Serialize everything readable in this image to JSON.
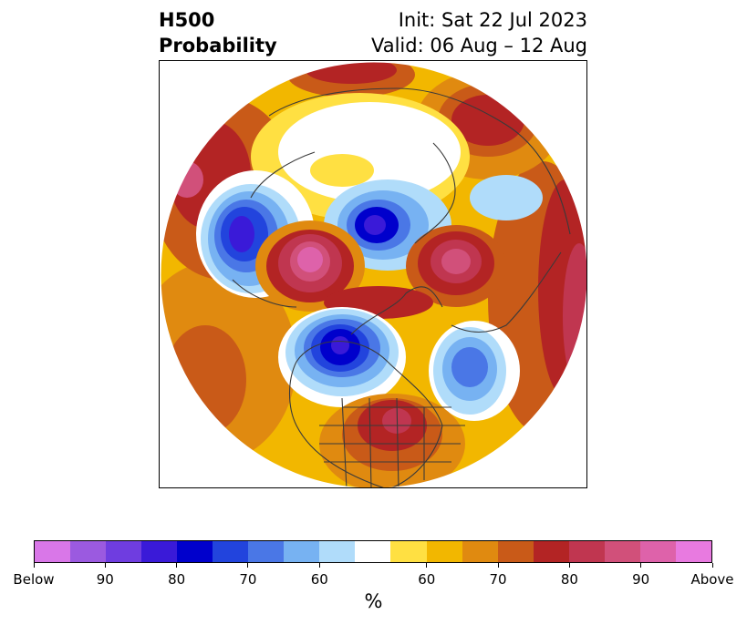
{
  "header": {
    "title_line1": "H500",
    "title_line2": "Probability",
    "init": "Init: Sat 22 Jul 2023",
    "valid": "Valid: 06 Aug – 12 Aug"
  },
  "colorbar": {
    "unit_label": "%",
    "colors": [
      "#d977e8",
      "#9b5ae0",
      "#6f3de0",
      "#3a1ad8",
      "#0000cc",
      "#2244dd",
      "#4a77e6",
      "#77b2f2",
      "#b0dcfa",
      "#ffffff",
      "#ffe042",
      "#f2b700",
      "#e08a10",
      "#c95a18",
      "#b32424",
      "#c03650",
      "#d1507a",
      "#de62aa",
      "#e87ae0"
    ],
    "tick_labels": [
      "Below",
      "90",
      "80",
      "70",
      "60",
      "60",
      "70",
      "80",
      "90",
      "Above"
    ],
    "tick_indices": [
      0,
      2,
      4,
      6,
      8,
      11,
      13,
      15,
      17,
      19
    ]
  },
  "map": {
    "projection": "north-polar stereographic",
    "legend": "top",
    "icons": [
      "hemisphere-map"
    ]
  }
}
